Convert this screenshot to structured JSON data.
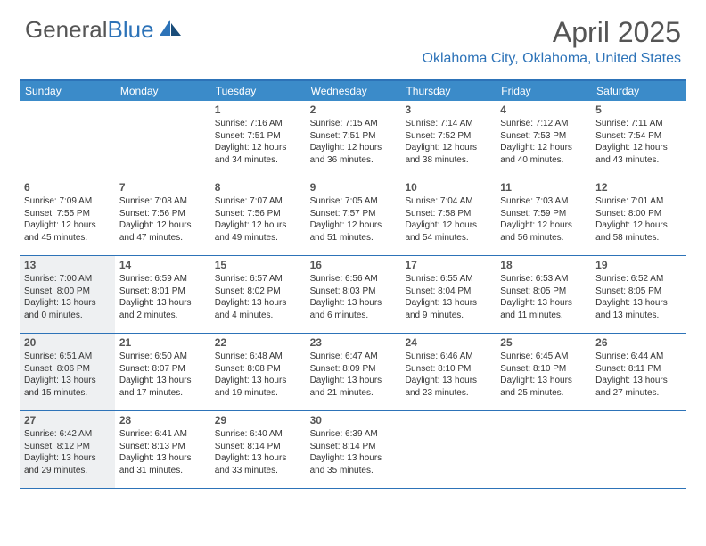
{
  "logo": {
    "part1": "General",
    "part2": "Blue"
  },
  "title": "April 2025",
  "location": "Oklahoma City, Oklahoma, United States",
  "colors": {
    "accent": "#2d73b8",
    "header_bg": "#3b8bc9",
    "shaded_bg": "#eef0f2",
    "text": "#333333",
    "title_text": "#555555"
  },
  "day_names": [
    "Sunday",
    "Monday",
    "Tuesday",
    "Wednesday",
    "Thursday",
    "Friday",
    "Saturday"
  ],
  "weeks": [
    [
      {
        "day": "",
        "sunrise": "",
        "sunset": "",
        "daylight": ""
      },
      {
        "day": "",
        "sunrise": "",
        "sunset": "",
        "daylight": ""
      },
      {
        "day": "1",
        "sunrise": "Sunrise: 7:16 AM",
        "sunset": "Sunset: 7:51 PM",
        "daylight": "Daylight: 12 hours and 34 minutes."
      },
      {
        "day": "2",
        "sunrise": "Sunrise: 7:15 AM",
        "sunset": "Sunset: 7:51 PM",
        "daylight": "Daylight: 12 hours and 36 minutes."
      },
      {
        "day": "3",
        "sunrise": "Sunrise: 7:14 AM",
        "sunset": "Sunset: 7:52 PM",
        "daylight": "Daylight: 12 hours and 38 minutes."
      },
      {
        "day": "4",
        "sunrise": "Sunrise: 7:12 AM",
        "sunset": "Sunset: 7:53 PM",
        "daylight": "Daylight: 12 hours and 40 minutes."
      },
      {
        "day": "5",
        "sunrise": "Sunrise: 7:11 AM",
        "sunset": "Sunset: 7:54 PM",
        "daylight": "Daylight: 12 hours and 43 minutes."
      }
    ],
    [
      {
        "day": "6",
        "sunrise": "Sunrise: 7:09 AM",
        "sunset": "Sunset: 7:55 PM",
        "daylight": "Daylight: 12 hours and 45 minutes."
      },
      {
        "day": "7",
        "sunrise": "Sunrise: 7:08 AM",
        "sunset": "Sunset: 7:56 PM",
        "daylight": "Daylight: 12 hours and 47 minutes."
      },
      {
        "day": "8",
        "sunrise": "Sunrise: 7:07 AM",
        "sunset": "Sunset: 7:56 PM",
        "daylight": "Daylight: 12 hours and 49 minutes."
      },
      {
        "day": "9",
        "sunrise": "Sunrise: 7:05 AM",
        "sunset": "Sunset: 7:57 PM",
        "daylight": "Daylight: 12 hours and 51 minutes."
      },
      {
        "day": "10",
        "sunrise": "Sunrise: 7:04 AM",
        "sunset": "Sunset: 7:58 PM",
        "daylight": "Daylight: 12 hours and 54 minutes."
      },
      {
        "day": "11",
        "sunrise": "Sunrise: 7:03 AM",
        "sunset": "Sunset: 7:59 PM",
        "daylight": "Daylight: 12 hours and 56 minutes."
      },
      {
        "day": "12",
        "sunrise": "Sunrise: 7:01 AM",
        "sunset": "Sunset: 8:00 PM",
        "daylight": "Daylight: 12 hours and 58 minutes."
      }
    ],
    [
      {
        "day": "13",
        "sunrise": "Sunrise: 7:00 AM",
        "sunset": "Sunset: 8:00 PM",
        "daylight": "Daylight: 13 hours and 0 minutes.",
        "shaded": true
      },
      {
        "day": "14",
        "sunrise": "Sunrise: 6:59 AM",
        "sunset": "Sunset: 8:01 PM",
        "daylight": "Daylight: 13 hours and 2 minutes."
      },
      {
        "day": "15",
        "sunrise": "Sunrise: 6:57 AM",
        "sunset": "Sunset: 8:02 PM",
        "daylight": "Daylight: 13 hours and 4 minutes."
      },
      {
        "day": "16",
        "sunrise": "Sunrise: 6:56 AM",
        "sunset": "Sunset: 8:03 PM",
        "daylight": "Daylight: 13 hours and 6 minutes."
      },
      {
        "day": "17",
        "sunrise": "Sunrise: 6:55 AM",
        "sunset": "Sunset: 8:04 PM",
        "daylight": "Daylight: 13 hours and 9 minutes."
      },
      {
        "day": "18",
        "sunrise": "Sunrise: 6:53 AM",
        "sunset": "Sunset: 8:05 PM",
        "daylight": "Daylight: 13 hours and 11 minutes."
      },
      {
        "day": "19",
        "sunrise": "Sunrise: 6:52 AM",
        "sunset": "Sunset: 8:05 PM",
        "daylight": "Daylight: 13 hours and 13 minutes."
      }
    ],
    [
      {
        "day": "20",
        "sunrise": "Sunrise: 6:51 AM",
        "sunset": "Sunset: 8:06 PM",
        "daylight": "Daylight: 13 hours and 15 minutes.",
        "shaded": true
      },
      {
        "day": "21",
        "sunrise": "Sunrise: 6:50 AM",
        "sunset": "Sunset: 8:07 PM",
        "daylight": "Daylight: 13 hours and 17 minutes."
      },
      {
        "day": "22",
        "sunrise": "Sunrise: 6:48 AM",
        "sunset": "Sunset: 8:08 PM",
        "daylight": "Daylight: 13 hours and 19 minutes."
      },
      {
        "day": "23",
        "sunrise": "Sunrise: 6:47 AM",
        "sunset": "Sunset: 8:09 PM",
        "daylight": "Daylight: 13 hours and 21 minutes."
      },
      {
        "day": "24",
        "sunrise": "Sunrise: 6:46 AM",
        "sunset": "Sunset: 8:10 PM",
        "daylight": "Daylight: 13 hours and 23 minutes."
      },
      {
        "day": "25",
        "sunrise": "Sunrise: 6:45 AM",
        "sunset": "Sunset: 8:10 PM",
        "daylight": "Daylight: 13 hours and 25 minutes."
      },
      {
        "day": "26",
        "sunrise": "Sunrise: 6:44 AM",
        "sunset": "Sunset: 8:11 PM",
        "daylight": "Daylight: 13 hours and 27 minutes."
      }
    ],
    [
      {
        "day": "27",
        "sunrise": "Sunrise: 6:42 AM",
        "sunset": "Sunset: 8:12 PM",
        "daylight": "Daylight: 13 hours and 29 minutes.",
        "shaded": true
      },
      {
        "day": "28",
        "sunrise": "Sunrise: 6:41 AM",
        "sunset": "Sunset: 8:13 PM",
        "daylight": "Daylight: 13 hours and 31 minutes."
      },
      {
        "day": "29",
        "sunrise": "Sunrise: 6:40 AM",
        "sunset": "Sunset: 8:14 PM",
        "daylight": "Daylight: 13 hours and 33 minutes."
      },
      {
        "day": "30",
        "sunrise": "Sunrise: 6:39 AM",
        "sunset": "Sunset: 8:14 PM",
        "daylight": "Daylight: 13 hours and 35 minutes."
      },
      {
        "day": "",
        "sunrise": "",
        "sunset": "",
        "daylight": ""
      },
      {
        "day": "",
        "sunrise": "",
        "sunset": "",
        "daylight": ""
      },
      {
        "day": "",
        "sunrise": "",
        "sunset": "",
        "daylight": ""
      }
    ]
  ]
}
